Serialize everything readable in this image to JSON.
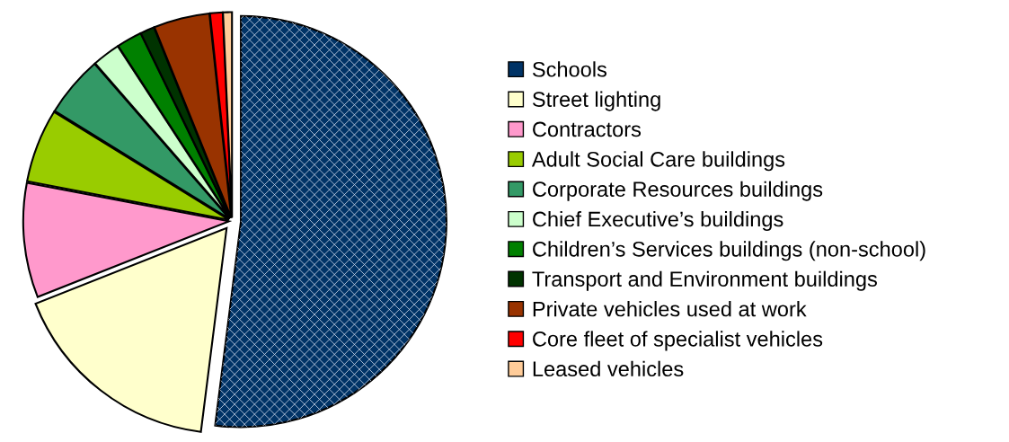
{
  "chart_data": {
    "type": "pie",
    "categories": [
      "Schools",
      "Street lighting",
      "Contractors",
      "Adult Social Care buildings",
      "Corporate Resources buildings",
      "Chief Executive’s buildings",
      "Children’s Services buildings (non-school)",
      "Transport and Environment buildings",
      "Private vehicles used at work",
      "Core fleet of specialist vehicles",
      "Leased vehicles"
    ],
    "values": [
      52,
      17,
      9,
      5.8,
      4.8,
      2.2,
      2,
      1.1,
      4.4,
      1,
      0.7
    ],
    "colors": [
      "#003366",
      "#ffffcc",
      "#ff99cc",
      "#99cc00",
      "#339966",
      "#ccffcc",
      "#008000",
      "#003300",
      "#993300",
      "#ff0000",
      "#ffcc99"
    ],
    "legend": "right"
  }
}
